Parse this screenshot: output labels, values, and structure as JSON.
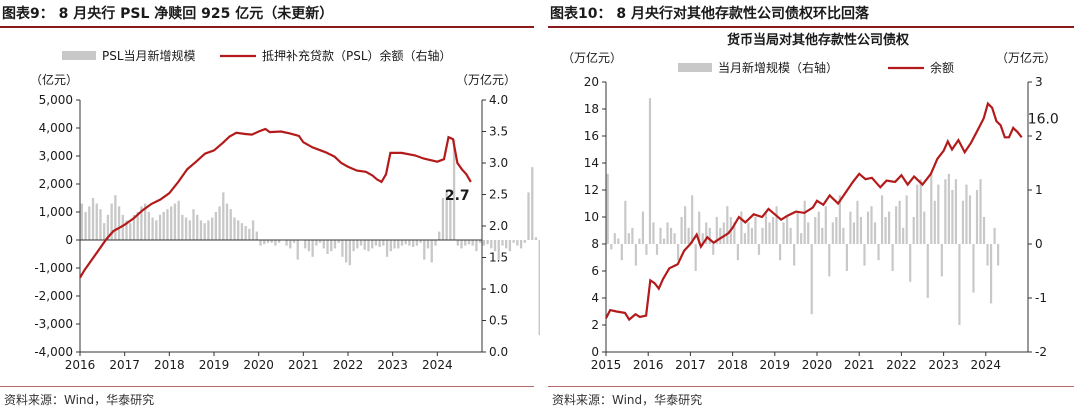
{
  "left": {
    "fig_title": "图表9：  8 月央行 PSL 净赎回 925 亿元（未更新）",
    "source": "资料来源：Wind，华泰研究",
    "chart_data": {
      "type": "bar+line",
      "left_unit": "（亿元）",
      "right_unit": "（万亿元）",
      "bar_series": {
        "name": "PSL当月新增规模",
        "color": "#c8c8c8"
      },
      "line_series": {
        "name": "抵押补充贷款（PSL）余额（右轴）",
        "color": "#b31b1b"
      },
      "left_ylim": [
        -4000,
        5000
      ],
      "left_ticks": [
        "5,000",
        "4,000",
        "3,000",
        "2,000",
        "1,000",
        "0",
        "-1,000",
        "-2,000",
        "-3,000",
        "-4,000"
      ],
      "right_ylim": [
        0.0,
        4.0
      ],
      "right_ticks": [
        "4.0",
        "3.5",
        "3.0",
        "2.5",
        "2.0",
        "1.5",
        "1.0",
        "0.5",
        "0.0"
      ],
      "x_labels": [
        "2016",
        "2017",
        "2018",
        "2019",
        "2020",
        "2021",
        "2022",
        "2023",
        "2024"
      ],
      "x_start": 2016.0,
      "end_label": "2.7",
      "bars": [
        1300,
        1000,
        1200,
        1500,
        1300,
        1100,
        600,
        900,
        1300,
        1600,
        1200,
        900,
        700,
        600,
        900,
        1000,
        1200,
        1300,
        1000,
        800,
        700,
        900,
        1000,
        1100,
        1200,
        1300,
        1400,
        900,
        800,
        700,
        1100,
        900,
        700,
        600,
        700,
        800,
        1000,
        1200,
        1700,
        1300,
        1100,
        800,
        700,
        600,
        500,
        400,
        700,
        300,
        -200,
        -150,
        -100,
        -100,
        -200,
        -100,
        0,
        -200,
        -300,
        -100,
        -700,
        0,
        -300,
        -400,
        -600,
        -200,
        -100,
        -300,
        -500,
        -400,
        -300,
        -100,
        -600,
        -800,
        -900,
        -400,
        -300,
        -200,
        -350,
        -400,
        -300,
        -200,
        -250,
        -200,
        -600,
        -400,
        -300,
        -300,
        -200,
        -150,
        -200,
        -250,
        -200,
        -100,
        -700,
        -300,
        -800,
        -200,
        300,
        1500,
        1800,
        1500,
        3600,
        -200,
        -300,
        -200,
        -150,
        -200,
        -400,
        -100,
        -200,
        -150,
        -300,
        -400,
        -700,
        -200,
        -300,
        -400,
        -100,
        -200,
        -300,
        -100,
        1700,
        2600,
        100,
        -3400,
        -400,
        -500,
        -800,
        -1200,
        -900
      ],
      "line": [
        [
          2016.0,
          1.18
        ],
        [
          2016.1,
          1.3
        ],
        [
          2016.25,
          1.45
        ],
        [
          2016.4,
          1.6
        ],
        [
          2016.5,
          1.7
        ],
        [
          2016.6,
          1.8
        ],
        [
          2016.75,
          1.92
        ],
        [
          2016.9,
          1.98
        ],
        [
          2017.0,
          2.02
        ],
        [
          2017.2,
          2.12
        ],
        [
          2017.4,
          2.25
        ],
        [
          2017.6,
          2.35
        ],
        [
          2017.8,
          2.42
        ],
        [
          2018.0,
          2.52
        ],
        [
          2018.2,
          2.7
        ],
        [
          2018.4,
          2.9
        ],
        [
          2018.6,
          3.02
        ],
        [
          2018.8,
          3.15
        ],
        [
          2019.0,
          3.2
        ],
        [
          2019.2,
          3.32
        ],
        [
          2019.35,
          3.42
        ],
        [
          2019.5,
          3.48
        ],
        [
          2019.7,
          3.46
        ],
        [
          2019.85,
          3.45
        ],
        [
          2020.0,
          3.5
        ],
        [
          2020.15,
          3.54
        ],
        [
          2020.25,
          3.49
        ],
        [
          2020.5,
          3.5
        ],
        [
          2020.7,
          3.47
        ],
        [
          2020.9,
          3.43
        ],
        [
          2021.0,
          3.33
        ],
        [
          2021.2,
          3.25
        ],
        [
          2021.5,
          3.17
        ],
        [
          2021.7,
          3.1
        ],
        [
          2021.85,
          3.0
        ],
        [
          2022.0,
          2.94
        ],
        [
          2022.2,
          2.88
        ],
        [
          2022.4,
          2.86
        ],
        [
          2022.55,
          2.8
        ],
        [
          2022.65,
          2.74
        ],
        [
          2022.75,
          2.7
        ],
        [
          2022.85,
          2.82
        ],
        [
          2022.95,
          3.16
        ],
        [
          2023.2,
          3.16
        ],
        [
          2023.5,
          3.12
        ],
        [
          2023.7,
          3.07
        ],
        [
          2024.0,
          3.02
        ],
        [
          2024.15,
          3.06
        ],
        [
          2024.25,
          3.41
        ],
        [
          2024.35,
          3.38
        ],
        [
          2024.45,
          3.0
        ],
        [
          2024.55,
          2.9
        ],
        [
          2024.65,
          2.82
        ],
        [
          2024.75,
          2.7
        ]
      ]
    }
  },
  "right": {
    "fig_title": "图表10：  8 月央行对其他存款性公司债权环比回落",
    "source": "资料来源：Wind，华泰研究",
    "chart_data": {
      "type": "bar+line",
      "title": "货币当局对其他存款性公司债权",
      "left_unit": "（万亿元）",
      "right_unit": "（万亿元）",
      "bar_series": {
        "name": "当月新增规模（右轴）",
        "color": "#c8c8c8"
      },
      "line_series": {
        "name": "余额",
        "color": "#b31b1b"
      },
      "left_ylim": [
        0,
        20
      ],
      "left_ticks": [
        "20",
        "18",
        "16",
        "14",
        "12",
        "10",
        "8",
        "6",
        "4",
        "2",
        "0"
      ],
      "right_ylim": [
        -2,
        3
      ],
      "right_ticks": [
        "3",
        "2",
        "1",
        "0",
        "-1",
        "-2"
      ],
      "x_labels": [
        "2015",
        "2016",
        "2017",
        "2018",
        "2019",
        "2020",
        "2021",
        "2022",
        "2023",
        "2024"
      ],
      "x_start": 2015.0,
      "end_label": "16.0",
      "bars": [
        1.3,
        -0.1,
        0.2,
        0.1,
        -0.3,
        0.8,
        0.2,
        0.3,
        -0.4,
        0.1,
        0.6,
        -0.2,
        2.7,
        0.4,
        -0.2,
        0.3,
        0.1,
        0.4,
        0.3,
        0.2,
        -0.3,
        0.5,
        0.7,
        0.3,
        0.9,
        -0.5,
        0.6,
        0.2,
        0.4,
        0.3,
        -0.2,
        0.5,
        0.3,
        0.4,
        0.7,
        0.5,
        0.4,
        -0.3,
        0.6,
        0.2,
        0.4,
        0.3,
        0.5,
        -0.2,
        0.3,
        0.6,
        0.4,
        0.5,
        0.7,
        -0.3,
        0.4,
        0.5,
        0.3,
        -0.4,
        0.6,
        0.2,
        0.8,
        0.4,
        -1.3,
        0.5,
        0.6,
        0.3,
        0.7,
        -0.6,
        0.4,
        0.5,
        0.9,
        0.3,
        -0.5,
        0.6,
        0.4,
        0.8,
        0.5,
        -0.4,
        0.6,
        0.7,
        0.4,
        -0.3,
        0.9,
        0.5,
        0.6,
        -0.5,
        0.7,
        0.8,
        0.3,
        0.9,
        -0.7,
        0.5,
        1.1,
        1.2,
        0.6,
        -1.0,
        1.3,
        0.8,
        1.1,
        -0.6,
        1.2,
        1.3,
        1.0,
        1.2,
        -1.5,
        0.8,
        1.1,
        0.9,
        -0.9,
        1.0,
        1.2,
        0.5,
        -0.4,
        -1.1,
        0.3,
        -0.4
      ]
    }
  }
}
